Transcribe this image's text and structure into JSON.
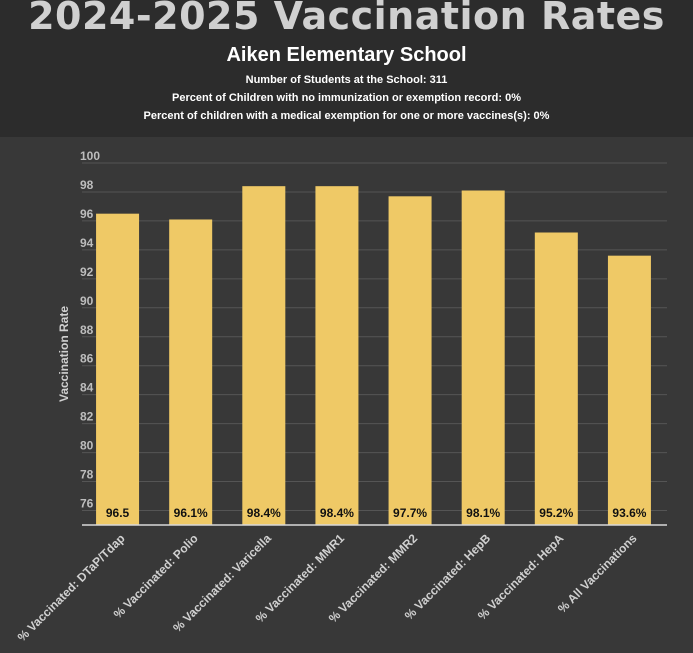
{
  "header": {
    "title": "2024-2025 Vaccination Rates",
    "school": "Aiken Elementary School",
    "info_students": "Number of Students at the School: 311",
    "info_no_record": "Percent of Children with no immunization or exemption record: 0%",
    "info_medical": "Percent of children with a medical exemption for one or more vaccines(s): 0%"
  },
  "colors": {
    "bar": "#efc966",
    "grid": "#555555",
    "background": "#383838",
    "header_bg": "#2c2c2c"
  },
  "chart_data": {
    "type": "bar",
    "title": "2024-2025 Vaccination Rates",
    "ylabel": "Vaccination Rate",
    "xlabel": "",
    "ylim": [
      75,
      100
    ],
    "yticks": [
      76,
      78,
      80,
      82,
      84,
      86,
      88,
      90,
      92,
      94,
      96,
      98,
      100
    ],
    "grid": true,
    "legend": "none",
    "categories": [
      "% Vaccinated: DTaP/Tdap",
      "% Vaccinated: Polio",
      "% Vaccinated: Varicella",
      "% Vaccinated: MMR1",
      "% Vaccinated: MMR2",
      "% Vaccinated: HepB",
      "% Vaccinated: HepA",
      "% All Vaccinations"
    ],
    "values": [
      96.5,
      96.1,
      98.4,
      98.4,
      97.7,
      98.1,
      95.2,
      93.6
    ],
    "data_labels": [
      "96.5",
      "96.1%",
      "98.4%",
      "98.4%",
      "97.7%",
      "98.1%",
      "95.2%",
      "93.6%"
    ]
  }
}
